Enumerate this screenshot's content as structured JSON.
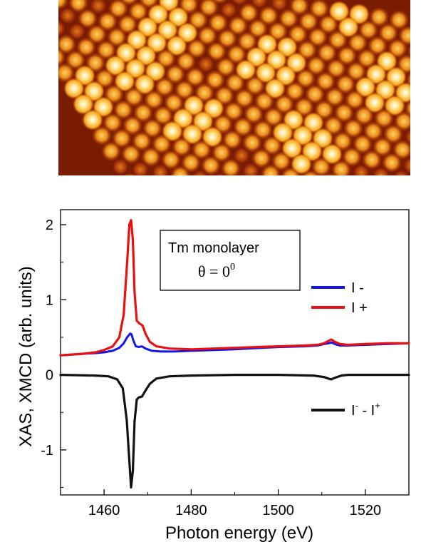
{
  "image_panel": {
    "colormap": [
      "#2a0000",
      "#8b1a00",
      "#d35400",
      "#f5a623",
      "#ffe38a",
      "#ffffff"
    ]
  },
  "chart_data": {
    "type": "line",
    "xlabel": "Photon energy (eV)",
    "ylabel": "XAS, XMCD (arb. units)",
    "xlim": [
      1450,
      1530
    ],
    "ylim": [
      -1.6,
      2.2
    ],
    "xticks": [
      1460,
      1480,
      1500,
      1520
    ],
    "xtick_labels": [
      "1460",
      "1480",
      "1500",
      "1520"
    ],
    "yticks": [
      -1,
      0,
      1,
      2
    ],
    "ytick_labels": [
      "-1",
      "0",
      "1",
      "2"
    ],
    "grid": false,
    "legend_position": "right",
    "annotation": {
      "line1": "Tm monolayer",
      "line2": "θ = 0",
      "superscript": "0"
    },
    "series": [
      {
        "name": "I -",
        "color": "#1515e6",
        "x": [
          1450,
          1455,
          1458,
          1460,
          1462,
          1463.5,
          1464.5,
          1465.3,
          1466.0,
          1466.3,
          1466.7,
          1467.3,
          1468.0,
          1468.7,
          1469.5,
          1471,
          1473,
          1476,
          1480,
          1490,
          1500,
          1506,
          1509,
          1510.5,
          1511.5,
          1512.2,
          1513,
          1514.2,
          1516,
          1520,
          1525,
          1530
        ],
        "y": [
          0.26,
          0.28,
          0.29,
          0.3,
          0.32,
          0.36,
          0.42,
          0.5,
          0.55,
          0.54,
          0.46,
          0.38,
          0.37,
          0.38,
          0.35,
          0.32,
          0.31,
          0.31,
          0.32,
          0.34,
          0.37,
          0.38,
          0.39,
          0.41,
          0.42,
          0.43,
          0.41,
          0.39,
          0.39,
          0.4,
          0.41,
          0.42
        ]
      },
      {
        "name": "I +",
        "color": "#e81010",
        "x": [
          1450,
          1455,
          1458,
          1460,
          1462,
          1463.5,
          1464.5,
          1465.3,
          1465.8,
          1466.2,
          1466.6,
          1467.0,
          1467.5,
          1468.2,
          1468.8,
          1469.5,
          1470.5,
          1472,
          1475,
          1480,
          1490,
          1500,
          1506,
          1509,
          1510.5,
          1511.5,
          1512.2,
          1513,
          1514.2,
          1516,
          1520,
          1525,
          1530
        ],
        "y": [
          0.26,
          0.28,
          0.3,
          0.33,
          0.38,
          0.5,
          0.8,
          1.5,
          2.0,
          2.06,
          1.8,
          1.1,
          0.72,
          0.68,
          0.66,
          0.55,
          0.44,
          0.38,
          0.35,
          0.34,
          0.36,
          0.38,
          0.39,
          0.4,
          0.42,
          0.45,
          0.47,
          0.44,
          0.41,
          0.4,
          0.41,
          0.42,
          0.42
        ]
      },
      {
        "name": "I⁻ - I⁺",
        "color": "#111111",
        "x": [
          1450,
          1458,
          1461,
          1463,
          1464.3,
          1465.2,
          1465.8,
          1466.2,
          1466.6,
          1467.0,
          1467.5,
          1468.0,
          1468.7,
          1469.5,
          1470.5,
          1472,
          1475,
          1480,
          1490,
          1500,
          1508,
          1510.5,
          1511.5,
          1512.2,
          1513,
          1514.5,
          1516,
          1520,
          1530
        ],
        "y": [
          0,
          -0.01,
          -0.02,
          -0.06,
          -0.18,
          -0.6,
          -1.15,
          -1.5,
          -1.28,
          -0.62,
          -0.33,
          -0.3,
          -0.29,
          -0.21,
          -0.12,
          -0.05,
          -0.02,
          -0.01,
          0,
          0,
          -0.01,
          -0.03,
          -0.05,
          -0.06,
          -0.04,
          -0.01,
          0,
          0,
          0
        ]
      }
    ]
  }
}
